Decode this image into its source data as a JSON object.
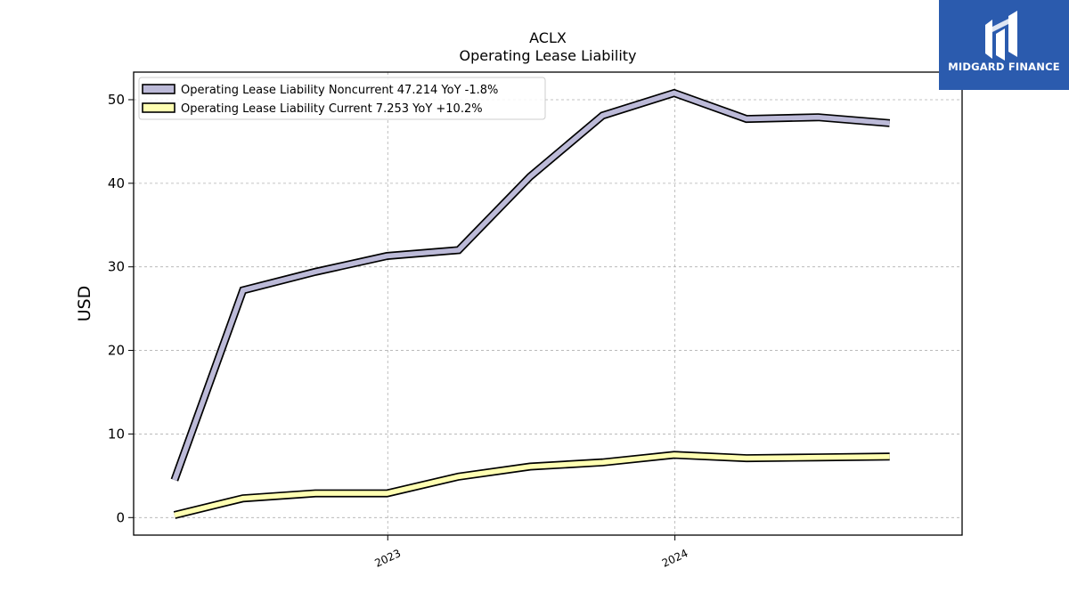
{
  "brand": {
    "name": "MIDGARD FINANCE",
    "bg_color": "#2b5bae"
  },
  "chart_data": {
    "type": "line",
    "title": "ACLX",
    "subtitle": "Operating Lease Liability",
    "xlabel": "",
    "ylabel": "USD",
    "ylim": [
      -2.1,
      53.3
    ],
    "yticks": [
      0,
      10,
      20,
      30,
      40,
      50
    ],
    "xlim": [
      "2022-02-12",
      "2024-12-31"
    ],
    "xticks": [
      {
        "date": "2023-01-01",
        "label": "2023"
      },
      {
        "date": "2024-01-01",
        "label": "2024"
      }
    ],
    "grid": true,
    "legend_position": "top-left",
    "x": [
      "2022-04-05",
      "2022-07-01",
      "2022-10-01",
      "2022-12-31",
      "2023-04-01",
      "2023-07-01",
      "2023-10-01",
      "2023-12-31",
      "2024-04-01",
      "2024-07-01",
      "2024-09-30"
    ],
    "series": [
      {
        "name": "Operating Lease Liability Noncurrent",
        "legend_label": "Operating Lease Liability Noncurrent  47.214 YoY -1.8%",
        "color": "#bcbad8",
        "values": [
          4.5,
          27.2,
          29.4,
          31.3,
          32.0,
          40.8,
          48.1,
          50.8,
          47.7,
          47.9,
          47.2
        ]
      },
      {
        "name": "Operating Lease Liability Current",
        "legend_label": "Operating Lease Liability Current  7.253 YoY +10.2%",
        "color": "#ffffb2",
        "values": [
          0.3,
          2.3,
          2.9,
          2.9,
          4.9,
          6.1,
          6.6,
          7.5,
          7.1,
          7.2,
          7.3
        ]
      }
    ]
  }
}
